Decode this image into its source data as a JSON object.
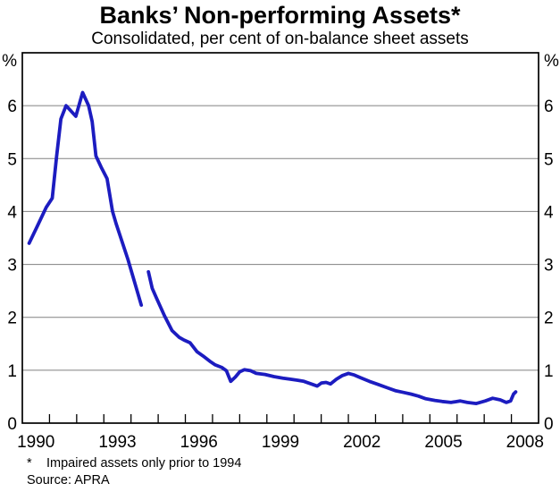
{
  "header": {
    "title": "Banks’ Non-performing Assets*",
    "subtitle": "Consolidated, per cent of on-balance sheet assets"
  },
  "footnotes": {
    "asterisk": "*",
    "note": "Impaired assets only prior to 1994",
    "source": "Source: APRA"
  },
  "chart_data": {
    "type": "line",
    "title": "Banks’ Non-performing Assets*",
    "subtitle": "Consolidated, per cent of on-balance sheet assets",
    "unit_label": "%",
    "xlim": [
      1990,
      2009
    ],
    "ylim": [
      0,
      7
    ],
    "grid": "horizontal-on",
    "gridline_color": "#808080",
    "frame_color": "#000000",
    "line_color": "#1c1cc0",
    "ytick_values": [
      0,
      1,
      2,
      3,
      4,
      5,
      6
    ],
    "ytick_labels": [
      "0",
      "1",
      "2",
      "3",
      "4",
      "5",
      "6"
    ],
    "ytick_sides": "both",
    "xtick_years": [
      1991,
      1992,
      1993,
      1994,
      1995,
      1996,
      1997,
      1998,
      1999,
      2000,
      2001,
      2002,
      2003,
      2004,
      2005,
      2006,
      2007,
      2008
    ],
    "xlabel_years": [
      1990,
      1993,
      1996,
      1999,
      2002,
      2005,
      2008
    ],
    "xlabel_offset_years": 0.5,
    "legend": "none",
    "series": [
      {
        "name": "impaired-assets-pre-1994",
        "points": [
          [
            1990.25,
            3.4
          ],
          [
            1990.55,
            3.72
          ],
          [
            1990.88,
            4.08
          ],
          [
            1991.1,
            4.25
          ],
          [
            1991.26,
            5.03
          ],
          [
            1991.42,
            5.75
          ],
          [
            1991.61,
            6.0
          ],
          [
            1991.97,
            5.8
          ],
          [
            1992.22,
            6.25
          ],
          [
            1992.44,
            6.0
          ],
          [
            1992.57,
            5.7
          ],
          [
            1992.71,
            5.05
          ],
          [
            1992.9,
            4.84
          ],
          [
            1993.12,
            4.62
          ],
          [
            1993.32,
            4.0
          ],
          [
            1993.45,
            3.77
          ],
          [
            1993.89,
            3.09
          ],
          [
            1994.38,
            2.23
          ]
        ]
      },
      {
        "name": "non-performing-assets-from-1994",
        "points": [
          [
            1994.64,
            2.86
          ],
          [
            1994.78,
            2.55
          ],
          [
            1994.93,
            2.37
          ],
          [
            1995.23,
            2.03
          ],
          [
            1995.51,
            1.75
          ],
          [
            1995.78,
            1.62
          ],
          [
            1995.95,
            1.57
          ],
          [
            1996.17,
            1.52
          ],
          [
            1996.43,
            1.35
          ],
          [
            1996.65,
            1.27
          ],
          [
            1996.9,
            1.17
          ],
          [
            1997.1,
            1.1
          ],
          [
            1997.35,
            1.05
          ],
          [
            1997.51,
            0.99
          ],
          [
            1997.67,
            0.79
          ],
          [
            1997.84,
            0.87
          ],
          [
            1998.0,
            0.97
          ],
          [
            1998.17,
            1.01
          ],
          [
            1998.4,
            0.99
          ],
          [
            1998.61,
            0.94
          ],
          [
            1998.93,
            0.92
          ],
          [
            1999.26,
            0.88
          ],
          [
            1999.59,
            0.85
          ],
          [
            1999.86,
            0.83
          ],
          [
            2000.14,
            0.81
          ],
          [
            2000.36,
            0.79
          ],
          [
            2000.63,
            0.74
          ],
          [
            2000.85,
            0.7
          ],
          [
            2001.01,
            0.76
          ],
          [
            2001.18,
            0.77
          ],
          [
            2001.34,
            0.74
          ],
          [
            2001.56,
            0.83
          ],
          [
            2001.78,
            0.9
          ],
          [
            2002.0,
            0.94
          ],
          [
            2002.22,
            0.91
          ],
          [
            2002.44,
            0.86
          ],
          [
            2002.77,
            0.79
          ],
          [
            2003.1,
            0.73
          ],
          [
            2003.42,
            0.67
          ],
          [
            2003.75,
            0.61
          ],
          [
            2004.03,
            0.58
          ],
          [
            2004.3,
            0.55
          ],
          [
            2004.58,
            0.51
          ],
          [
            2004.85,
            0.46
          ],
          [
            2005.18,
            0.43
          ],
          [
            2005.45,
            0.41
          ],
          [
            2005.78,
            0.39
          ],
          [
            2006.11,
            0.42
          ],
          [
            2006.38,
            0.39
          ],
          [
            2006.71,
            0.37
          ],
          [
            2007.04,
            0.42
          ],
          [
            2007.31,
            0.47
          ],
          [
            2007.59,
            0.44
          ],
          [
            2007.81,
            0.39
          ],
          [
            2007.97,
            0.42
          ],
          [
            2008.08,
            0.55
          ],
          [
            2008.16,
            0.59
          ]
        ]
      }
    ]
  }
}
